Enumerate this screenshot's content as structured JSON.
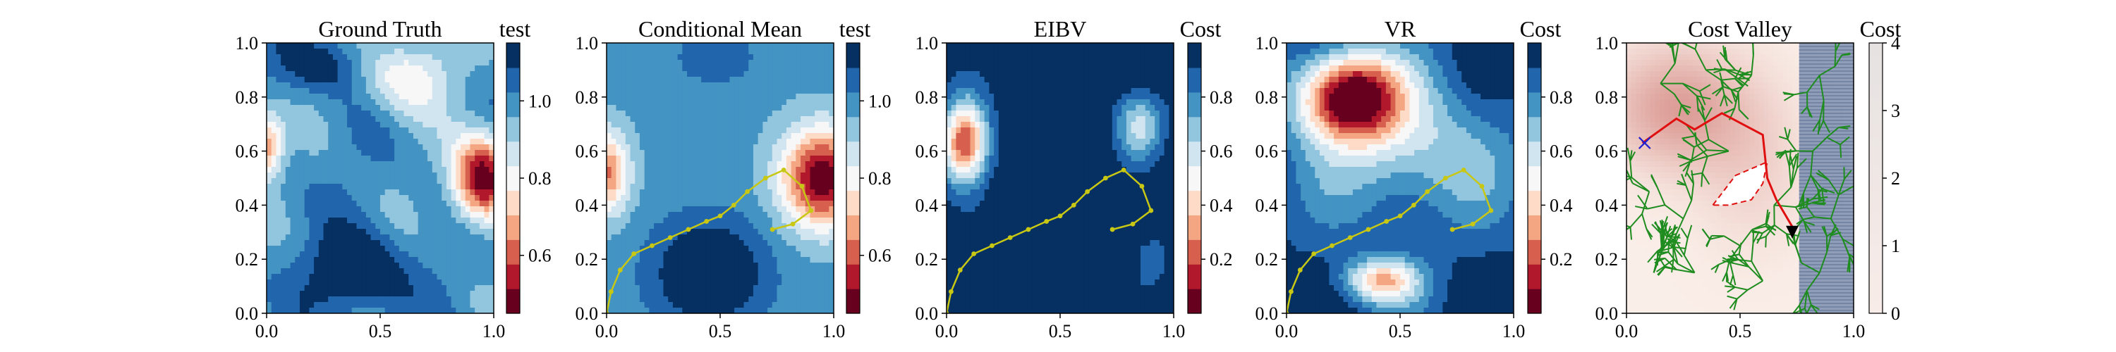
{
  "figure": {
    "panels": [
      {
        "title": "Ground Truth",
        "colorbar_label": "test",
        "colorbar_ticks": [
          "0.6",
          "0.8",
          "1.0"
        ],
        "colormap": "RdBu"
      },
      {
        "title": "Conditional Mean",
        "colorbar_label": "test",
        "colorbar_ticks": [
          "0.6",
          "0.8",
          "1.0"
        ],
        "colormap": "RdBu"
      },
      {
        "title": "EIBV",
        "colorbar_label": "Cost",
        "colorbar_ticks": [
          "0.2",
          "0.4",
          "0.6",
          "0.8"
        ],
        "colormap": "RdBu"
      },
      {
        "title": "VR",
        "colorbar_label": "Cost",
        "colorbar_ticks": [
          "0.2",
          "0.4",
          "0.6",
          "0.8"
        ],
        "colormap": "RdBu"
      },
      {
        "title": "Cost Valley",
        "colorbar_label": "Cost",
        "colorbar_ticks": [
          "0",
          "1",
          "2",
          "3",
          "4"
        ],
        "colormap": "Reds"
      }
    ],
    "x_ticks": [
      "0.0",
      "0.5",
      "1.0"
    ],
    "y_ticks": [
      "0.0",
      "0.2",
      "0.4",
      "0.6",
      "0.8",
      "1.0"
    ],
    "colors": {
      "trajectory": "#c8c814",
      "rrt_tree": "#1e8c1e",
      "path": "#e01010",
      "polygon": "#e01010",
      "marker_start": "#2020d0",
      "marker_goal": "#000000",
      "rdbu": [
        "#67001f",
        "#b2182b",
        "#d6604d",
        "#f4a582",
        "#fddbc7",
        "#f7f7f7",
        "#d1e5f0",
        "#92c5de",
        "#4393c3",
        "#2166ac",
        "#053061"
      ]
    }
  },
  "chart_data": [
    {
      "type": "heatmap",
      "title": "Ground Truth",
      "colorbar_label": "test",
      "xlim": [
        0,
        1
      ],
      "ylim": [
        0,
        1
      ],
      "clim": [
        0.45,
        1.15
      ],
      "features": [
        {
          "x": 0.95,
          "y": 0.5,
          "kind": "low"
        },
        {
          "x": 0.02,
          "y": 0.6,
          "kind": "low"
        },
        {
          "x": 0.35,
          "y": 0.1,
          "kind": "high"
        },
        {
          "x": 0.3,
          "y": 0.95,
          "kind": "high"
        }
      ]
    },
    {
      "type": "heatmap",
      "title": "Conditional Mean",
      "colorbar_label": "test",
      "xlim": [
        0,
        1
      ],
      "ylim": [
        0,
        1
      ],
      "clim": [
        0.45,
        1.15
      ],
      "trajectory": {
        "x": [
          0.0,
          0.02,
          0.06,
          0.12,
          0.2,
          0.28,
          0.36,
          0.44,
          0.5,
          0.56,
          0.62,
          0.7,
          0.78,
          0.86,
          0.9,
          0.82,
          0.73
        ],
        "y": [
          0.0,
          0.08,
          0.16,
          0.22,
          0.25,
          0.28,
          0.31,
          0.34,
          0.36,
          0.4,
          0.45,
          0.5,
          0.53,
          0.47,
          0.38,
          0.33,
          0.31
        ]
      }
    },
    {
      "type": "heatmap",
      "title": "EIBV",
      "colorbar_label": "Cost",
      "xlim": [
        0,
        1
      ],
      "ylim": [
        0,
        1
      ],
      "clim": [
        0.0,
        1.0
      ],
      "trajectory": {
        "x": [
          0.0,
          0.02,
          0.06,
          0.12,
          0.2,
          0.28,
          0.36,
          0.44,
          0.5,
          0.56,
          0.62,
          0.7,
          0.78,
          0.86,
          0.9,
          0.82,
          0.73
        ],
        "y": [
          0.0,
          0.08,
          0.16,
          0.22,
          0.25,
          0.28,
          0.31,
          0.34,
          0.36,
          0.4,
          0.45,
          0.5,
          0.53,
          0.47,
          0.38,
          0.33,
          0.31
        ]
      }
    },
    {
      "type": "heatmap",
      "title": "VR",
      "colorbar_label": "Cost",
      "xlim": [
        0,
        1
      ],
      "ylim": [
        0,
        1
      ],
      "clim": [
        0.0,
        1.0
      ],
      "trajectory": {
        "x": [
          0.0,
          0.02,
          0.06,
          0.12,
          0.2,
          0.28,
          0.36,
          0.44,
          0.5,
          0.56,
          0.62,
          0.7,
          0.78,
          0.86,
          0.9,
          0.82,
          0.73
        ],
        "y": [
          0.0,
          0.08,
          0.16,
          0.22,
          0.25,
          0.28,
          0.31,
          0.34,
          0.36,
          0.4,
          0.45,
          0.5,
          0.53,
          0.47,
          0.38,
          0.33,
          0.31
        ]
      }
    },
    {
      "type": "heatmap",
      "title": "Cost Valley",
      "colorbar_label": "Cost",
      "xlim": [
        0,
        1
      ],
      "ylim": [
        0,
        1
      ],
      "clim": [
        0,
        4
      ],
      "path": {
        "x": [
          0.07,
          0.22,
          0.3,
          0.42,
          0.6,
          0.62,
          0.66,
          0.73
        ],
        "y": [
          0.63,
          0.72,
          0.68,
          0.74,
          0.66,
          0.5,
          0.42,
          0.32
        ]
      },
      "polygon": {
        "x": [
          0.38,
          0.48,
          0.62,
          0.6,
          0.55,
          0.45,
          0.38
        ],
        "y": [
          0.4,
          0.51,
          0.56,
          0.48,
          0.42,
          0.4,
          0.4
        ]
      },
      "start_marker": {
        "x": 0.08,
        "y": 0.63
      },
      "goal_marker": {
        "x": 0.73,
        "y": 0.3
      },
      "obstacle_band_x": [
        0.76,
        1.0
      ]
    }
  ]
}
